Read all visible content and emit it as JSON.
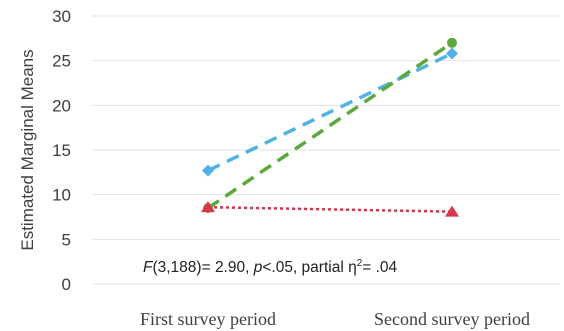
{
  "chart_data": {
    "type": "line",
    "title": "",
    "xlabel": "",
    "ylabel": "Estimated Marginal Means",
    "categories": [
      "First survey period",
      "Second survey period"
    ],
    "ylim": [
      0,
      30
    ],
    "yticks": [
      0,
      5,
      10,
      15,
      20,
      25,
      30
    ],
    "grid": true,
    "legend": "none",
    "series": [
      {
        "values": [
          12.7,
          25.8
        ],
        "color": "#4fb3e8",
        "line_style": "dashed",
        "marker": "diamond"
      },
      {
        "values": [
          8.5,
          27.0
        ],
        "color": "#5aaa3a",
        "line_style": "dashed",
        "marker": "circle"
      },
      {
        "values": [
          8.6,
          8.1
        ],
        "color": "#d9344a",
        "line_style": "dotted",
        "marker": "triangle"
      }
    ],
    "annotation": {
      "F_italic": "F",
      "F_rest": "(3,188)= 2.90, ",
      "p_italic": "p",
      "p_rest": "<.05, partial η",
      "sup": "2",
      "tail": "= .04"
    }
  }
}
